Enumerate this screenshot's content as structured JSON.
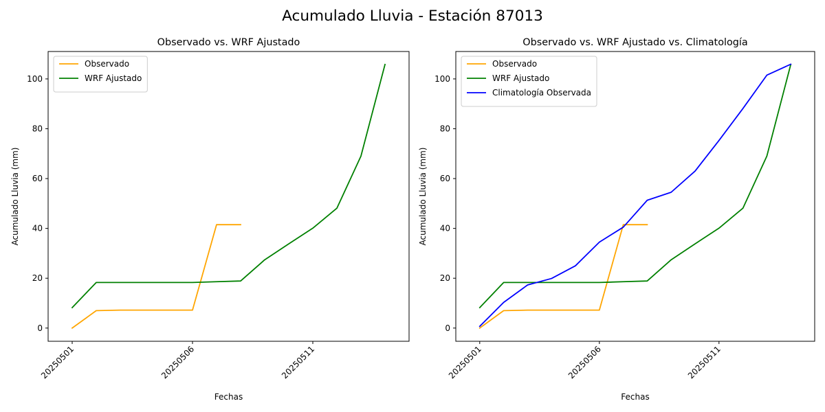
{
  "figure": {
    "suptitle": "Acumulado Lluvia - Estación 87013"
  },
  "chart_data": [
    {
      "type": "line",
      "title": "Observado vs. WRF Ajustado",
      "xlabel": "Fechas",
      "ylabel": "Acumulado Lluvia (mm)",
      "x_ticks": [
        "20250501",
        "20250506",
        "20250511"
      ],
      "y_ticks": [
        0,
        20,
        40,
        60,
        80,
        100
      ],
      "xlim": [
        "20250430",
        "20250515"
      ],
      "ylim": [
        -5.3,
        111
      ],
      "legend": "top-left",
      "grid": false,
      "series": [
        {
          "name": "Observado",
          "color": "#ffa500",
          "points": [
            {
              "date": "20250501",
              "value": 0.0
            },
            {
              "date": "20250502",
              "value": 7.0
            },
            {
              "date": "20250503",
              "value": 7.2
            },
            {
              "date": "20250504",
              "value": 7.2
            },
            {
              "date": "20250505",
              "value": 7.2
            },
            {
              "date": "20250506",
              "value": 7.2
            },
            {
              "date": "20250507",
              "value": 41.5
            },
            {
              "date": "20250508",
              "value": 41.5
            }
          ]
        },
        {
          "name": "WRF Ajustado",
          "color": "#008000",
          "points": [
            {
              "date": "20250501",
              "value": 8.2
            },
            {
              "date": "20250502",
              "value": 18.3
            },
            {
              "date": "20250503",
              "value": 18.3
            },
            {
              "date": "20250504",
              "value": 18.3
            },
            {
              "date": "20250505",
              "value": 18.3
            },
            {
              "date": "20250506",
              "value": 18.3
            },
            {
              "date": "20250507",
              "value": 18.6
            },
            {
              "date": "20250508",
              "value": 18.9
            },
            {
              "date": "20250509",
              "value": 27.4
            },
            {
              "date": "20250510",
              "value": 33.8
            },
            {
              "date": "20250511",
              "value": 40.1
            },
            {
              "date": "20250512",
              "value": 48.1
            },
            {
              "date": "20250513",
              "value": 69.0
            },
            {
              "date": "20250514",
              "value": 105.8
            }
          ]
        }
      ]
    },
    {
      "type": "line",
      "title": "Observado vs. WRF Ajustado vs. Climatología",
      "xlabel": "Fechas",
      "ylabel": "Acumulado Lluvia (mm)",
      "x_ticks": [
        "20250501",
        "20250506",
        "20250511"
      ],
      "y_ticks": [
        0,
        20,
        40,
        60,
        80,
        100
      ],
      "xlim": [
        "20250430",
        "20250515"
      ],
      "ylim": [
        -5.3,
        111
      ],
      "legend": "top-left",
      "grid": false,
      "series": [
        {
          "name": "Observado",
          "color": "#ffa500",
          "points": [
            {
              "date": "20250501",
              "value": 0.0
            },
            {
              "date": "20250502",
              "value": 7.0
            },
            {
              "date": "20250503",
              "value": 7.2
            },
            {
              "date": "20250504",
              "value": 7.2
            },
            {
              "date": "20250505",
              "value": 7.2
            },
            {
              "date": "20250506",
              "value": 7.2
            },
            {
              "date": "20250507",
              "value": 41.5
            },
            {
              "date": "20250508",
              "value": 41.5
            }
          ]
        },
        {
          "name": "WRF Ajustado",
          "color": "#008000",
          "points": [
            {
              "date": "20250501",
              "value": 8.2
            },
            {
              "date": "20250502",
              "value": 18.3
            },
            {
              "date": "20250503",
              "value": 18.3
            },
            {
              "date": "20250504",
              "value": 18.3
            },
            {
              "date": "20250505",
              "value": 18.3
            },
            {
              "date": "20250506",
              "value": 18.3
            },
            {
              "date": "20250507",
              "value": 18.6
            },
            {
              "date": "20250508",
              "value": 18.9
            },
            {
              "date": "20250509",
              "value": 27.4
            },
            {
              "date": "20250510",
              "value": 33.8
            },
            {
              "date": "20250511",
              "value": 40.1
            },
            {
              "date": "20250512",
              "value": 48.1
            },
            {
              "date": "20250513",
              "value": 69.0
            },
            {
              "date": "20250514",
              "value": 105.8
            }
          ]
        },
        {
          "name": "Climatología Observada",
          "color": "#0000ff",
          "points": [
            {
              "date": "20250501",
              "value": 0.7
            },
            {
              "date": "20250502",
              "value": 10.3
            },
            {
              "date": "20250503",
              "value": 17.3
            },
            {
              "date": "20250504",
              "value": 19.9
            },
            {
              "date": "20250505",
              "value": 25.0
            },
            {
              "date": "20250506",
              "value": 34.5
            },
            {
              "date": "20250507",
              "value": 40.5
            },
            {
              "date": "20250508",
              "value": 51.3
            },
            {
              "date": "20250509",
              "value": 54.5
            },
            {
              "date": "20250510",
              "value": 63.0
            },
            {
              "date": "20250511",
              "value": 75.3
            },
            {
              "date": "20250512",
              "value": 88.1
            },
            {
              "date": "20250513",
              "value": 101.5
            },
            {
              "date": "20250514",
              "value": 105.9
            }
          ]
        }
      ]
    }
  ]
}
